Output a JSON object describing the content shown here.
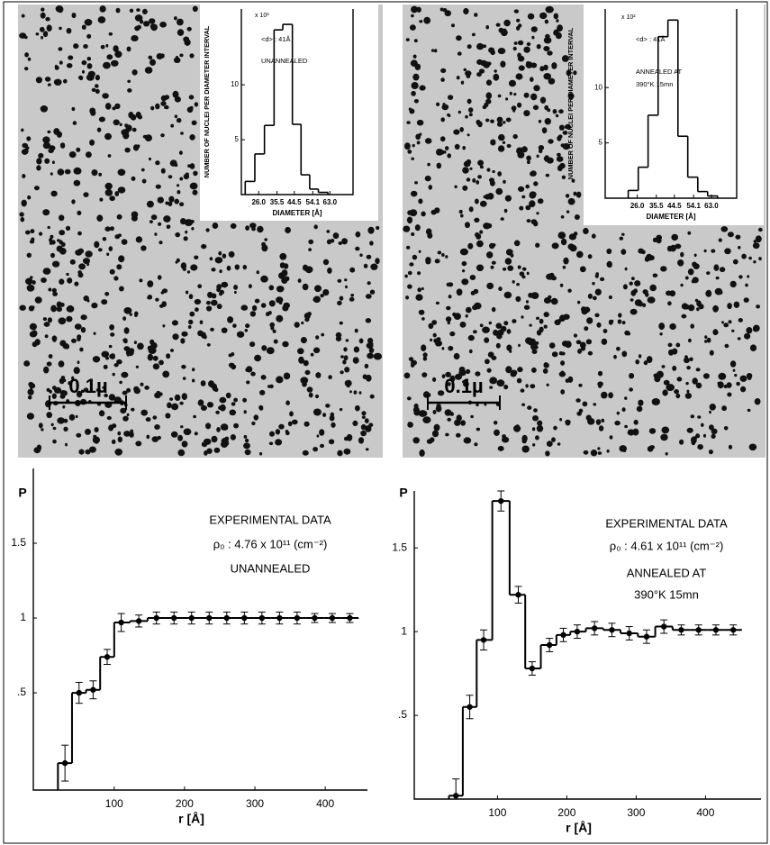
{
  "micrographs": [
    {
      "scale_label": "0.1µ"
    },
    {
      "scale_label": "0.1µ"
    }
  ],
  "chart_data": [
    {
      "type": "histogram",
      "annotations": [
        "<d> : 41Å",
        "UNANNEALED"
      ],
      "y_unit": "x 10²",
      "ylabel": "NUMBER OF NUCLEI PER DIAMETER INTERVAL",
      "xlabel": "DIAMETER [Å]",
      "bins": [
        19,
        24,
        29,
        34,
        38.5,
        43.5,
        48,
        52.5,
        57,
        62
      ],
      "values": [
        1.2,
        3.7,
        6.3,
        15.0,
        15.5,
        6.4,
        1.8,
        0.5,
        0.2
      ],
      "color": "#000000",
      "xlim": [
        17,
        75
      ],
      "ylim": [
        0,
        16.9
      ],
      "xticks": [
        {
          "value": 26,
          "label": "26.0"
        },
        35.5,
        44.5,
        54.1,
        {
          "value": 63,
          "label": "63.0"
        }
      ],
      "yticks": [
        5,
        10
      ]
    },
    {
      "type": "histogram",
      "annotations": [
        "<d> : 41Å",
        "ANNEALED AT",
        "390°K 15mn"
      ],
      "y_unit": "x 10²",
      "ylabel": "NUMBER OF NUCLEI PER DIAMETER INTERVAL",
      "xlabel": "DIAMETER [Å]",
      "bins": [
        21.5,
        26.5,
        31.4,
        36.4,
        41.3,
        46.3,
        51.2,
        56.2,
        61.1,
        66.1
      ],
      "values": [
        0.7,
        2.8,
        7.5,
        14.6,
        16.1,
        5.6,
        1.9,
        0.6,
        0.2
      ],
      "color": "#000000",
      "xlim": [
        10,
        75.6
      ],
      "ylim": [
        0,
        17.1
      ],
      "xticks": [
        {
          "value": 26,
          "label": "26.0"
        },
        35.5,
        44.5,
        54.1,
        {
          "value": 63,
          "label": "63.0"
        }
      ],
      "yticks": [
        5,
        10
      ]
    },
    {
      "type": "step",
      "ylabel": "P",
      "xlabel": "r [Å]",
      "annotations": [
        "EXPERIMENTAL DATA",
        "ρ₀ : 4.76 x 10¹¹ (cm⁻²)",
        "UNANNEALED"
      ],
      "x": [
        30,
        50,
        70,
        90,
        110,
        135,
        160,
        185,
        210,
        235,
        260,
        285,
        310,
        335,
        360,
        385,
        410,
        435
      ],
      "values": [
        0.03,
        0.5,
        0.52,
        0.74,
        0.97,
        0.98,
        1.0,
        1.0,
        1.0,
        1.0,
        1.0,
        1.0,
        1.0,
        1.0,
        1.0,
        1.0,
        1.0,
        1.0
      ],
      "errors": [
        0.12,
        0.07,
        0.06,
        0.05,
        0.06,
        0.04,
        0.04,
        0.04,
        0.04,
        0.04,
        0.04,
        0.04,
        0.04,
        0.04,
        0.04,
        0.03,
        0.03,
        0.03
      ],
      "color": "#000000",
      "xlim": [
        -15,
        460
      ],
      "ylim": [
        -0.15,
        2.0
      ],
      "xticks": [
        100,
        200,
        300,
        400
      ],
      "yticks": [
        {
          "value": 0.5,
          "label": ".5"
        },
        1,
        1.5
      ]
    },
    {
      "type": "step",
      "ylabel": "P",
      "xlabel": "r [Å]",
      "annotations": [
        "EXPERIMENTAL DATA",
        "ρ₀ : 4.61 x 10¹¹ (cm⁻²)",
        "ANNEALED AT",
        "390°K 15mn"
      ],
      "x": [
        40,
        60,
        80,
        105,
        130,
        150,
        175,
        195,
        215,
        240,
        265,
        290,
        315,
        340,
        365,
        390,
        415,
        440
      ],
      "values": [
        0.02,
        0.55,
        0.95,
        1.78,
        1.22,
        0.78,
        0.92,
        0.98,
        1.0,
        1.02,
        1.01,
        0.99,
        0.97,
        1.03,
        1.01,
        1.01,
        1.01,
        1.01
      ],
      "errors": [
        0.1,
        0.07,
        0.06,
        0.06,
        0.05,
        0.04,
        0.04,
        0.04,
        0.04,
        0.04,
        0.04,
        0.04,
        0.04,
        0.04,
        0.03,
        0.03,
        0.03,
        0.03
      ],
      "color": "#000000",
      "xlim": [
        -20,
        480
      ],
      "ylim": [
        0,
        1.84
      ],
      "xticks": [
        100,
        200,
        300,
        400
      ],
      "yticks": [
        {
          "value": 0.5,
          "label": ".5"
        },
        1,
        1.5
      ]
    }
  ]
}
